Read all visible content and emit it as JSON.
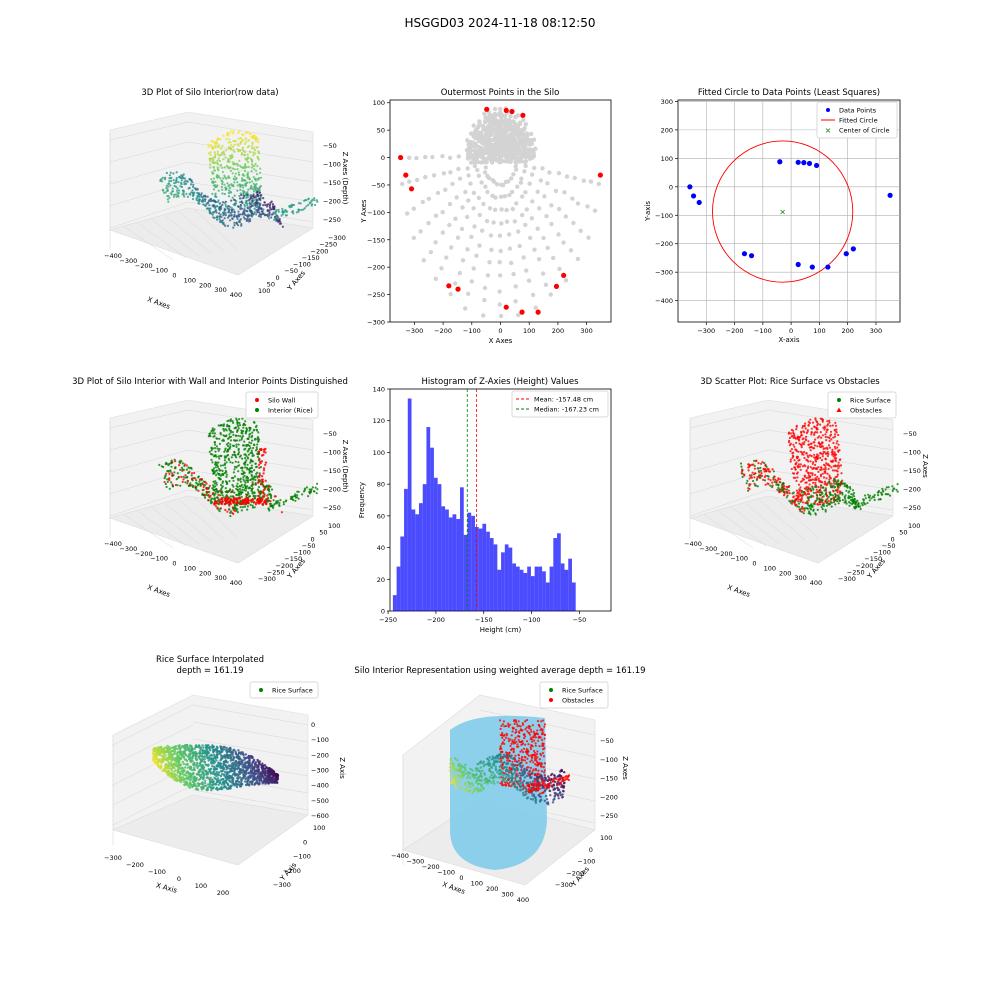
{
  "suptitle": "HSGGD03 2024-11-18 08:12:50",
  "colors": {
    "wall": "#ff0000",
    "rice": "#008000",
    "points": "#0000ff",
    "silo": "#87ceeb",
    "hist": "#0000ff",
    "grey": "#d3d3d3"
  },
  "chart_data": [
    {
      "id": "raw3d",
      "type": "scatter",
      "projection": "3d",
      "title": "3D Plot of Silo Interior(row data)",
      "xlabel": "X Axes",
      "ylabel": "Y Axes",
      "zlabel": "Z Axes (Depth)",
      "xticks": [
        "−400",
        "−300",
        "−200",
        "−100",
        "0",
        "100",
        "200",
        "300",
        "400"
      ],
      "yticks": [
        "−300",
        "−250",
        "−200",
        "−150",
        "−100",
        "−50",
        "0",
        "50",
        "100"
      ],
      "zticks": [
        "−50",
        "−100",
        "−150",
        "−200",
        "−250"
      ],
      "colormap": "viridis"
    },
    {
      "id": "outer",
      "type": "scatter",
      "title": "Outermost Points in the Silo",
      "xlabel": "X Axes",
      "ylabel": "Y Axes",
      "xlim": [
        -385,
        385
      ],
      "ylim": [
        -300,
        105
      ],
      "xticks": [
        -300,
        -200,
        -100,
        0,
        100,
        200,
        300
      ],
      "yticks": [
        100,
        50,
        0,
        -50,
        -100,
        -150,
        -200,
        -250,
        -300
      ],
      "outermost": [
        [
          -348,
          0
        ],
        [
          -330,
          -32
        ],
        [
          -310,
          -57
        ],
        [
          -48,
          88
        ],
        [
          20,
          86
        ],
        [
          40,
          84
        ],
        [
          78,
          77
        ],
        [
          348,
          -32
        ],
        [
          -180,
          -234
        ],
        [
          -148,
          -240
        ],
        [
          20,
          -273
        ],
        [
          75,
          -282
        ],
        [
          131,
          -282
        ],
        [
          195,
          -235
        ],
        [
          220,
          -215
        ]
      ]
    },
    {
      "id": "circle",
      "type": "scatter",
      "title": "Fitted Circle to Data Points (Least Squares)",
      "xlabel": "X-axis",
      "ylabel": "Y-axis",
      "xlim": [
        -400,
        385
      ],
      "ylim": [
        -475,
        305
      ],
      "xticks": [
        -300,
        -200,
        -100,
        0,
        100,
        200,
        300
      ],
      "yticks": [
        300,
        200,
        100,
        0,
        -100,
        -200,
        -300,
        -400
      ],
      "legend": [
        "Data Points",
        "Fitted Circle",
        "Center of Circle"
      ],
      "points": [
        [
          -358,
          0
        ],
        [
          -345,
          -32
        ],
        [
          -325,
          -55
        ],
        [
          -40,
          88
        ],
        [
          25,
          86
        ],
        [
          45,
          85
        ],
        [
          65,
          82
        ],
        [
          90,
          75
        ],
        [
          350,
          -30
        ],
        [
          -165,
          -235
        ],
        [
          -140,
          -242
        ],
        [
          25,
          -273
        ],
        [
          75,
          -282
        ],
        [
          130,
          -282
        ],
        [
          195,
          -235
        ],
        [
          220,
          -218
        ]
      ],
      "center": [
        -30,
        -87
      ],
      "radius": 248
    },
    {
      "id": "wall3d",
      "type": "scatter",
      "projection": "3d",
      "title": "3D Plot of Silo Interior with Wall and Interior Points Distinguished",
      "xlabel": "X Axes",
      "ylabel": "Y Axes",
      "zlabel": "Z Axes (Depth)",
      "legend": [
        "Silo Wall",
        "Interior (Rice)"
      ]
    },
    {
      "id": "hist",
      "type": "bar",
      "title": "Histogram of Z-Axies (Height) Values",
      "xlabel": "Height (cm)",
      "ylabel": "Frequency",
      "xlim": [
        -248,
        -17
      ],
      "ylim": [
        0,
        140
      ],
      "bin_start": -245,
      "bin_width": 3.9,
      "xticks": [
        -250,
        -200,
        -150,
        -100,
        -50
      ],
      "yticks": [
        0,
        20,
        40,
        60,
        80,
        100,
        120,
        140
      ],
      "values": [
        10,
        28,
        47,
        77,
        134,
        64,
        61,
        68,
        80,
        116,
        103,
        84,
        80,
        66,
        64,
        59,
        61,
        58,
        78,
        48,
        62,
        60,
        53,
        52,
        55,
        50,
        46,
        42,
        26,
        37,
        42,
        40,
        30,
        28,
        26,
        24,
        28,
        22,
        28,
        28,
        25,
        18,
        28,
        46,
        49,
        30,
        26,
        33,
        18
      ],
      "mean": -157.48,
      "median": -167.23,
      "legend": [
        "Mean: -157.48 cm",
        "Median: -167.23 cm"
      ]
    },
    {
      "id": "ricevsobs",
      "type": "scatter",
      "projection": "3d",
      "title": "3D Scatter Plot: Rice Surface vs Obstacles",
      "xlabel": "X Axes",
      "ylabel": "Y Axes",
      "zlabel": "Z Axes",
      "legend": [
        "Rice Surface",
        "Obstacles"
      ]
    },
    {
      "id": "interp",
      "type": "scatter",
      "projection": "3d",
      "title": "Rice Surface Interpolated",
      "subtitle": "depth = 161.19",
      "xlabel": "X Axis",
      "ylabel": "Y Axis",
      "zlabel": "Z Axis",
      "xticks": [
        "−300",
        "−200",
        "−100",
        "0",
        "100",
        "200"
      ],
      "yticks": [
        "−300",
        "−200",
        "−100",
        "0",
        "100"
      ],
      "zticks": [
        "0",
        "−100",
        "−200",
        "−300",
        "−400",
        "−500",
        "−600"
      ],
      "legend": [
        "Rice Surface"
      ]
    },
    {
      "id": "rep",
      "type": "scatter",
      "projection": "3d",
      "title": "Silo Interior Representation using weighted average depth = 161.19",
      "xlabel": "X Axes",
      "ylabel": "Y Axes",
      "zlabel": "Z Axes",
      "legend": [
        "Rice Surface",
        "Obstacles"
      ]
    }
  ]
}
